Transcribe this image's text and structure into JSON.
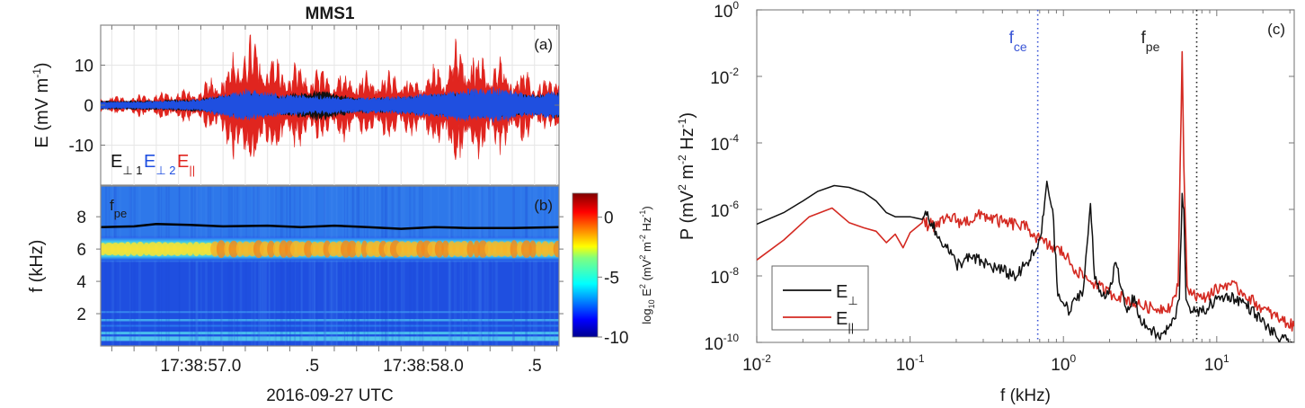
{
  "figure": {
    "title": "MMS1"
  },
  "chart_data": [
    {
      "id": "a",
      "type": "line",
      "panel_label": "(a)",
      "title": "MMS1",
      "ylabel_main": "E (mV m",
      "ylabel_sup": "-1",
      "ylabel_close": ")",
      "ylim": [
        -20,
        20
      ],
      "yticks": [
        10,
        0,
        -10
      ],
      "ytick_labels": [
        "10",
        "0",
        "-10"
      ],
      "xlim_seconds": [
        56.55,
        58.61
      ],
      "grid": true,
      "legend": [
        {
          "label": "E",
          "sub": "⊥ 1",
          "color": "#111111"
        },
        {
          "label": "E",
          "sub": "⊥ 2",
          "color": "#1f4fe0"
        },
        {
          "label": "E",
          "sub": "||",
          "color": "#e0251f"
        }
      ],
      "series": [
        {
          "name": "E_perp1",
          "color": "#111111",
          "envelope": [
            [
              56.55,
              1.2
            ],
            [
              56.8,
              1.3
            ],
            [
              57.0,
              1.8
            ],
            [
              57.2,
              3.2
            ],
            [
              57.35,
              2.5
            ],
            [
              57.55,
              4.2
            ],
            [
              57.7,
              2.0
            ],
            [
              57.9,
              2.2
            ],
            [
              58.1,
              3.0
            ],
            [
              58.3,
              3.2
            ],
            [
              58.5,
              2.8
            ],
            [
              58.61,
              3.5
            ]
          ]
        },
        {
          "name": "E_perp2",
          "color": "#1f4fe0",
          "envelope": [
            [
              56.55,
              1.0
            ],
            [
              56.8,
              1.1
            ],
            [
              57.0,
              1.6
            ],
            [
              57.2,
              4.5
            ],
            [
              57.35,
              3.0
            ],
            [
              57.55,
              2.6
            ],
            [
              57.7,
              2.0
            ],
            [
              57.9,
              2.5
            ],
            [
              58.1,
              3.8
            ],
            [
              58.3,
              5.0
            ],
            [
              58.5,
              3.0
            ],
            [
              58.61,
              4.0
            ]
          ]
        },
        {
          "name": "E_par",
          "color": "#e0251f",
          "envelope": [
            [
              56.55,
              2.5
            ],
            [
              56.7,
              2.8
            ],
            [
              56.85,
              4.0
            ],
            [
              57.0,
              5.0
            ],
            [
              57.1,
              10.5
            ],
            [
              57.2,
              20.0
            ],
            [
              57.28,
              17.0
            ],
            [
              57.35,
              13.0
            ],
            [
              57.45,
              11.0
            ],
            [
              57.55,
              10.0
            ],
            [
              57.65,
              10.0
            ],
            [
              57.75,
              9.0
            ],
            [
              57.85,
              10.0
            ],
            [
              57.95,
              8.0
            ],
            [
              58.05,
              11.0
            ],
            [
              58.15,
              18.0
            ],
            [
              58.2,
              17.0
            ],
            [
              58.3,
              14.0
            ],
            [
              58.4,
              12.0
            ],
            [
              58.5,
              8.0
            ],
            [
              58.58,
              7.0
            ],
            [
              58.61,
              15.0
            ]
          ]
        }
      ]
    },
    {
      "id": "b",
      "type": "heatmap",
      "panel_label": "(b)",
      "ylabel": "f (kHz)",
      "ylim": [
        0,
        9.9
      ],
      "yticks": [
        2,
        4,
        6,
        8
      ],
      "ytick_labels": [
        "2",
        "4",
        "6",
        "8"
      ],
      "xlim_seconds": [
        56.55,
        58.61
      ],
      "xticks_seconds": [
        57.0,
        57.5,
        58.0,
        58.5
      ],
      "xtick_labels": [
        "17:38:57.0",
        ".5",
        "17:38:58.0",
        ".5"
      ],
      "xlabel": "2016-09-27 UTC",
      "band_center_khz": 6.0,
      "band_halfwidth_khz": 0.7,
      "fpe_label": "f",
      "fpe_sub": "pe",
      "fpe_khz": [
        [
          56.55,
          7.35
        ],
        [
          56.7,
          7.4
        ],
        [
          56.8,
          7.55
        ],
        [
          56.95,
          7.5
        ],
        [
          57.1,
          7.4
        ],
        [
          57.3,
          7.45
        ],
        [
          57.45,
          7.35
        ],
        [
          57.6,
          7.45
        ],
        [
          57.75,
          7.35
        ],
        [
          57.9,
          7.25
        ],
        [
          58.05,
          7.35
        ],
        [
          58.2,
          7.3
        ],
        [
          58.4,
          7.3
        ],
        [
          58.61,
          7.35
        ]
      ],
      "colorbar": {
        "label_main": "log",
        "label_sub": "10",
        "label_rest": " E",
        "label_sup": "2",
        "label_units": " (mV",
        "label_units_sup": "2",
        "label_units2": " m",
        "label_units2_sup": "-2",
        "label_units3": " Hz",
        "label_units3_sup": "-1",
        "label_close": ")",
        "range": [
          -10,
          2
        ],
        "ticks": [
          0,
          -5,
          -10
        ],
        "tick_labels": [
          "0",
          "-5",
          "-10"
        ],
        "colormap": "jet"
      }
    },
    {
      "id": "c",
      "type": "line",
      "panel_label": "(c)",
      "xscale": "log",
      "yscale": "log",
      "xlabel": "f (kHz)",
      "ylabel_main": "P (mV",
      "ylabel_sup1": "2",
      "ylabel_mid": " m",
      "ylabel_sup2": "-2",
      "ylabel_mid2": " Hz",
      "ylabel_sup3": "-1",
      "ylabel_close": ")",
      "xlim": [
        0.01,
        32
      ],
      "ylim": [
        1e-10,
        1
      ],
      "xtick_exponents": [
        "-2",
        "-1",
        "0",
        "1"
      ],
      "ytick_exponents": [
        "0",
        "-2",
        "-4",
        "-6",
        "-8",
        "-10"
      ],
      "tick_base": "10",
      "vlines": [
        {
          "name": "f_ce",
          "label": "f",
          "sub": "ce",
          "x": 0.68,
          "color": "#3a55d6"
        },
        {
          "name": "f_pe",
          "label": "f",
          "sub": "pe",
          "x": 7.4,
          "color": "#222222"
        }
      ],
      "legend_position": "bottom-left",
      "legend": [
        {
          "label": "E",
          "sub": "⊥",
          "color": "#111111"
        },
        {
          "label": "E",
          "sub": "||",
          "color": "#d42a22"
        }
      ],
      "series": [
        {
          "name": "E_perp",
          "color": "#111111",
          "points": [
            [
              0.01,
              3.6e-07
            ],
            [
              0.015,
              8e-07
            ],
            [
              0.02,
              1.8e-06
            ],
            [
              0.025,
              3.5e-06
            ],
            [
              0.032,
              5.2e-06
            ],
            [
              0.04,
              4.6e-06
            ],
            [
              0.05,
              3.2e-06
            ],
            [
              0.06,
              1.8e-06
            ],
            [
              0.07,
              8e-07
            ],
            [
              0.08,
              6e-07
            ],
            [
              0.1,
              6e-07
            ],
            [
              0.12,
              5e-07
            ],
            [
              0.13,
              8.5e-07
            ],
            [
              0.15,
              1.5e-07
            ],
            [
              0.17,
              9e-08
            ],
            [
              0.2,
              2.2e-08
            ],
            [
              0.25,
              3.5e-08
            ],
            [
              0.3,
              2.5e-08
            ],
            [
              0.4,
              1.4e-08
            ],
            [
              0.5,
              1e-08
            ],
            [
              0.6,
              3e-08
            ],
            [
              0.68,
              7e-08
            ],
            [
              0.72,
              2e-07
            ],
            [
              0.78,
              7e-06
            ],
            [
              0.85,
              1e-06
            ],
            [
              0.92,
              2.5e-09
            ],
            [
              1.0,
              1.5e-09
            ],
            [
              1.1,
              8e-10
            ],
            [
              1.2,
              2e-09
            ],
            [
              1.35,
              4e-09
            ],
            [
              1.5,
              1.5e-06
            ],
            [
              1.6,
              8e-09
            ],
            [
              1.8,
              2.5e-09
            ],
            [
              2.0,
              4e-09
            ],
            [
              2.2,
              2.5e-08
            ],
            [
              2.35,
              5e-09
            ],
            [
              2.6,
              8e-10
            ],
            [
              2.9,
              2.5e-09
            ],
            [
              3.2,
              4e-10
            ],
            [
              3.7,
              2.5e-10
            ],
            [
              4.2,
              1.4e-10
            ],
            [
              4.8,
              2.5e-10
            ],
            [
              5.3,
              5e-10
            ],
            [
              5.7,
              2e-09
            ],
            [
              5.95,
              3e-06
            ],
            [
              6.1,
              1e-06
            ],
            [
              6.3,
              2e-09
            ],
            [
              7.0,
              8e-10
            ],
            [
              8.0,
              8e-10
            ],
            [
              10,
              2e-09
            ],
            [
              12,
              2.5e-09
            ],
            [
              15,
              1.6e-09
            ],
            [
              18,
              7e-10
            ],
            [
              22,
              2.5e-10
            ],
            [
              26,
              1.2e-10
            ],
            [
              32,
              1e-10
            ]
          ]
        },
        {
          "name": "E_par",
          "color": "#d42a22",
          "points": [
            [
              0.01,
              3e-08
            ],
            [
              0.015,
              1.2e-07
            ],
            [
              0.022,
              6e-07
            ],
            [
              0.031,
              1.1e-06
            ],
            [
              0.04,
              4e-07
            ],
            [
              0.05,
              2.8e-07
            ],
            [
              0.06,
              2.2e-07
            ],
            [
              0.07,
              1e-07
            ],
            [
              0.08,
              1.8e-07
            ],
            [
              0.09,
              7e-08
            ],
            [
              0.1,
              2e-07
            ],
            [
              0.12,
              4e-07
            ],
            [
              0.15,
              3e-07
            ],
            [
              0.18,
              6e-07
            ],
            [
              0.22,
              4e-07
            ],
            [
              0.3,
              7e-07
            ],
            [
              0.4,
              4e-07
            ],
            [
              0.5,
              3.5e-07
            ],
            [
              0.6,
              2.5e-07
            ],
            [
              0.7,
              1.2e-07
            ],
            [
              0.8,
              8e-08
            ],
            [
              1.0,
              5e-08
            ],
            [
              1.2,
              1.5e-08
            ],
            [
              1.5,
              7e-09
            ],
            [
              2.0,
              3e-09
            ],
            [
              2.5,
              2.2e-09
            ],
            [
              3.0,
              1.4e-09
            ],
            [
              4.0,
              1e-09
            ],
            [
              5.0,
              1.2e-09
            ],
            [
              5.6,
              5e-09
            ],
            [
              5.95,
              0.055
            ],
            [
              6.1,
              2e-05
            ],
            [
              6.4,
              5e-09
            ],
            [
              7.0,
              3e-09
            ],
            [
              8.0,
              2e-09
            ],
            [
              10,
              4e-09
            ],
            [
              12,
              6e-09
            ],
            [
              15,
              3e-09
            ],
            [
              20,
              1e-09
            ],
            [
              26,
              5e-10
            ],
            [
              32,
              3e-10
            ]
          ]
        }
      ]
    }
  ]
}
